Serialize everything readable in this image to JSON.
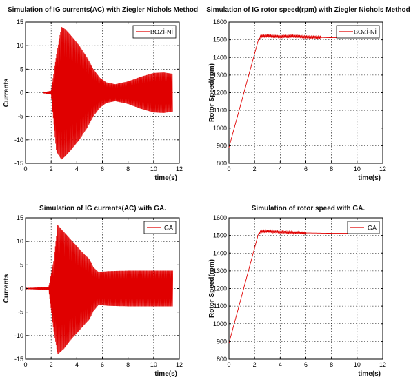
{
  "chart_data": [
    {
      "type": "line",
      "title": "Simulation of IG currents(AC) with Ziegler Nichols Method",
      "xlabel": "time(s)",
      "ylabel": "Currents",
      "xlim": [
        0,
        12
      ],
      "ylim": [
        -15,
        15
      ],
      "xticks": [
        0,
        2,
        4,
        6,
        8,
        10,
        12
      ],
      "yticks": [
        -15,
        -10,
        -5,
        0,
        5,
        10,
        15
      ],
      "grid": true,
      "legend_position": "top-right",
      "line_color": "#e00000",
      "signal": "oscillating AC current envelope",
      "series": [
        {
          "name": "BOZİ-Nİ",
          "envelope": {
            "x": [
              1.4,
              2.0,
              2.4,
              2.8,
              3.1,
              3.6,
              4.2,
              4.8,
              5.3,
              5.8,
              6.3,
              7.0,
              8.0,
              9.0,
              10.0,
              10.8,
              11.5
            ],
            "upper": [
              0.1,
              0.4,
              8.0,
              14.0,
              13.5,
              12.0,
              10.0,
              7.5,
              5.0,
              3.2,
              2.2,
              1.8,
              2.4,
              3.4,
              4.2,
              4.3,
              4.0
            ],
            "lower": [
              -0.1,
              -0.4,
              -12.5,
              -14.2,
              -13.5,
              -12.0,
              -10.0,
              -7.5,
              -5.0,
              -3.2,
              -2.2,
              -1.8,
              -2.4,
              -3.4,
              -4.2,
              -4.3,
              -4.0
            ]
          }
        }
      ]
    },
    {
      "type": "line",
      "title": "Simulation of IG rotor speed(rpm) with Ziegler Nichols Method",
      "xlabel": "time(s)",
      "ylabel": "Rotor Speed(rpm)",
      "xlim": [
        0,
        12
      ],
      "ylim": [
        800,
        1600
      ],
      "xticks": [
        0,
        2,
        4,
        6,
        8,
        10,
        12
      ],
      "yticks": [
        800,
        900,
        1000,
        1100,
        1200,
        1300,
        1400,
        1500,
        1600
      ],
      "grid": true,
      "legend_position": "top-right",
      "line_color": "#e00000",
      "series": [
        {
          "name": "BOZİ-Nİ",
          "x": [
            0,
            2.3,
            2.5,
            3.0,
            4.0,
            5.0,
            6.0,
            7.0,
            8.0,
            9.0,
            10.0,
            11.0,
            11.5
          ],
          "y": [
            890,
            1500,
            1520,
            1522,
            1518,
            1520,
            1516,
            1514,
            1512,
            1512,
            1512,
            1512,
            1512
          ],
          "ripple": {
            "from": 2.4,
            "to": 7.2,
            "amplitude": 8
          }
        }
      ]
    },
    {
      "type": "line",
      "title": "Simulation of IG currents(AC) with GA.",
      "xlabel": "time(s)",
      "ylabel": "Currents",
      "xlim": [
        0,
        12
      ],
      "ylim": [
        -15,
        15
      ],
      "xticks": [
        0,
        2,
        4,
        6,
        8,
        10,
        12
      ],
      "yticks": [
        -15,
        -10,
        -5,
        0,
        5,
        10,
        15
      ],
      "grid": true,
      "legend_position": "top-right",
      "line_color": "#e00000",
      "signal": "oscillating AC current envelope",
      "series": [
        {
          "name": "GA",
          "envelope": {
            "x": [
              0,
              1.8,
              2.2,
              2.5,
              3.0,
              3.5,
              4.0,
              4.5,
              5.0,
              5.3,
              5.7,
              6.5,
              8.0,
              10.0,
              11.5
            ],
            "upper": [
              0.1,
              0.3,
              6.0,
              13.5,
              12.0,
              10.5,
              9.0,
              7.5,
              6.2,
              4.5,
              3.5,
              3.7,
              3.8,
              3.8,
              3.8
            ],
            "lower": [
              -0.1,
              -0.3,
              -9.0,
              -14.0,
              -12.8,
              -11.0,
              -9.5,
              -8.0,
              -6.5,
              -4.8,
              -3.5,
              -3.7,
              -3.8,
              -3.8,
              -3.8
            ]
          }
        }
      ]
    },
    {
      "type": "line",
      "title": "Simulation of rotor speed with GA.",
      "xlabel": "time(s)",
      "ylabel": "Rotor Speed(rpm)",
      "xlim": [
        0,
        12
      ],
      "ylim": [
        800,
        1600
      ],
      "xticks": [
        0,
        2,
        4,
        6,
        8,
        10,
        12
      ],
      "yticks": [
        800,
        900,
        1000,
        1100,
        1200,
        1300,
        1400,
        1500,
        1600
      ],
      "grid": true,
      "legend_position": "top-right",
      "line_color": "#e00000",
      "series": [
        {
          "name": "GA",
          "x": [
            0,
            2.3,
            2.5,
            3.0,
            4.0,
            5.0,
            6.0,
            7.0,
            8.0,
            9.0,
            10.0,
            11.0,
            11.5
          ],
          "y": [
            890,
            1510,
            1522,
            1524,
            1520,
            1516,
            1514,
            1513,
            1512,
            1512,
            1512,
            1512,
            1512
          ],
          "ripple": {
            "from": 2.4,
            "to": 6.0,
            "amplitude": 7
          }
        }
      ]
    }
  ]
}
